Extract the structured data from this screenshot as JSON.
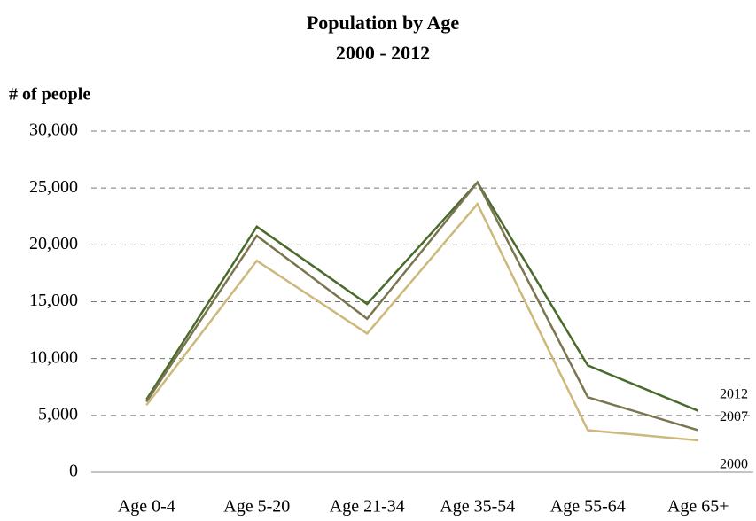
{
  "chart_data": {
    "type": "line",
    "title": "Population by Age",
    "subtitle": "2000 - 2012",
    "y_label": "# of people",
    "categories": [
      "Age 0-4",
      "Age 5-20",
      "Age 21-34",
      "Age 35-54",
      "Age 55-64",
      "Age 65+"
    ],
    "series": [
      {
        "name": "2012",
        "color": "#4b6b2c",
        "values": [
          6400,
          21600,
          14800,
          25500,
          9400,
          5400
        ]
      },
      {
        "name": "2007",
        "color": "#7b7650",
        "values": [
          6200,
          20800,
          13500,
          25500,
          6600,
          3700
        ]
      },
      {
        "name": "2000",
        "color": "#cdb97c",
        "values": [
          5900,
          18600,
          12200,
          23600,
          3700,
          2800
        ]
      }
    ],
    "ylim": [
      0,
      30000
    ],
    "yticks": [
      0,
      {
        "value": 5000,
        "label": "5,000"
      },
      {
        "value": 10000,
        "label": "10,000"
      },
      {
        "value": 15000,
        "label": "15,000"
      },
      {
        "value": 20000,
        "label": "20,000"
      },
      {
        "value": 25000,
        "label": "25,000"
      },
      {
        "value": 30000,
        "label": "30,000"
      }
    ],
    "grid": true
  }
}
